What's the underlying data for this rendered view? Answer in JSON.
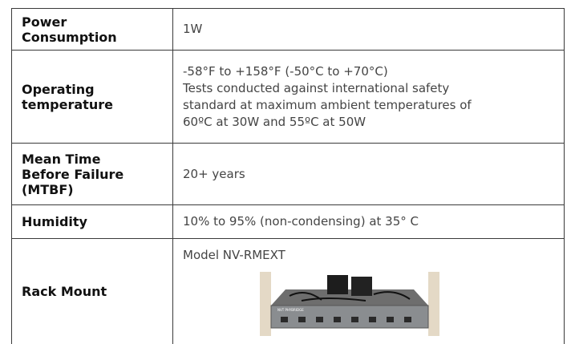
{
  "table": {
    "rows": [
      {
        "label": "Power Consumption",
        "lines": [
          "1W"
        ]
      },
      {
        "label": "Operating temperature",
        "lines": [
          "-58°F to +158°F (-50°C to +70°C)",
          "Tests conducted against international safety",
          "standard at maximum ambient temperatures of",
          "60ºC at 30W and 55ºC at 50W"
        ]
      },
      {
        "label": "Mean Time Before Failure (MTBF)",
        "lines": [
          "20+ years"
        ]
      },
      {
        "label": "Humidity",
        "lines": [
          "10% to 95% (non-condensing) at 35° C"
        ]
      },
      {
        "label": "Rack Mount",
        "lines": [
          "Model NV-RMEXT"
        ],
        "image_text": "NVT PHYBRIDGE"
      }
    ]
  }
}
